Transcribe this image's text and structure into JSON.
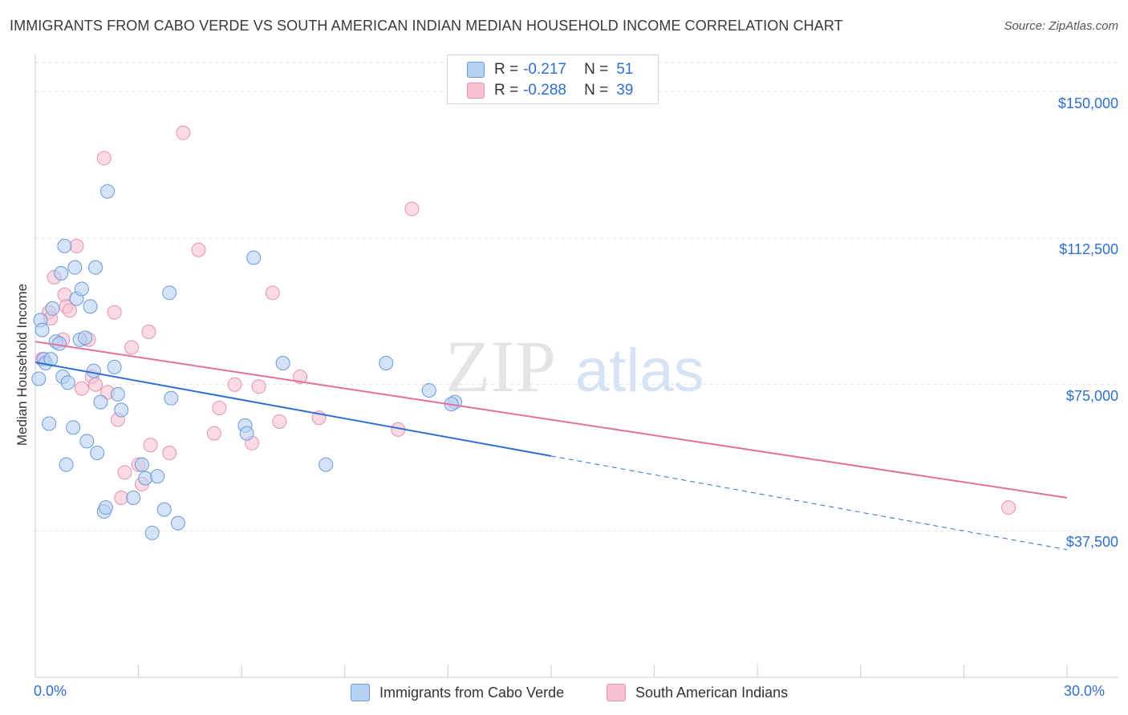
{
  "title": "IMMIGRANTS FROM CABO VERDE VS SOUTH AMERICAN INDIAN MEDIAN HOUSEHOLD INCOME CORRELATION CHART",
  "source": "Source: ZipAtlas.com",
  "watermark": {
    "zip": "ZIP",
    "atlas": "atlas"
  },
  "legend": {
    "rows": [
      {
        "r_label": "R =",
        "r_value": "-0.217",
        "n_label": "N =",
        "n_value": "51"
      },
      {
        "r_label": "R =",
        "r_value": "-0.288",
        "n_label": "N =",
        "n_value": "39"
      }
    ]
  },
  "colors": {
    "blue_fill": "#b8d0f2",
    "blue_stroke": "#6a9ad8",
    "blue_line": "#2f6fd0",
    "pink_fill": "#f7c3d3",
    "pink_stroke": "#e891ad",
    "pink_line": "#e2709a",
    "axis_text": "#2f6fd0"
  },
  "chart_data": {
    "type": "scatter",
    "title": "IMMIGRANTS FROM CABO VERDE VS SOUTH AMERICAN INDIAN MEDIAN HOUSEHOLD INCOME CORRELATION CHART",
    "xlabel": "",
    "ylabel": "Median Household Income",
    "xlim": [
      0,
      30
    ],
    "ylim": [
      0,
      157500
    ],
    "x_tick_labels": [
      "0.0%",
      "30.0%"
    ],
    "y_ticks": [
      37500,
      75000,
      112500,
      150000
    ],
    "y_tick_labels": [
      "$37,500",
      "$75,000",
      "$112,500",
      "$150,000"
    ],
    "grid": "horizontal dashed",
    "legend_position": "top-center and bottom",
    "series": [
      {
        "name": "Immigrants from Cabo Verde",
        "color": "#b8d0f2",
        "points": [
          [
            0.1,
            76500
          ],
          [
            0.15,
            91500
          ],
          [
            0.2,
            89000
          ],
          [
            0.25,
            81500
          ],
          [
            0.3,
            80500
          ],
          [
            0.4,
            65000
          ],
          [
            0.45,
            81500
          ],
          [
            0.5,
            94500
          ],
          [
            0.6,
            86000
          ],
          [
            0.7,
            85500
          ],
          [
            0.75,
            103500
          ],
          [
            0.8,
            77000
          ],
          [
            0.85,
            110500
          ],
          [
            0.9,
            54500
          ],
          [
            0.95,
            75500
          ],
          [
            1.1,
            64000
          ],
          [
            1.15,
            105000
          ],
          [
            1.2,
            97000
          ],
          [
            1.3,
            86500
          ],
          [
            1.35,
            99500
          ],
          [
            1.45,
            87000
          ],
          [
            1.5,
            60500
          ],
          [
            1.6,
            95000
          ],
          [
            1.7,
            78500
          ],
          [
            1.75,
            105000
          ],
          [
            1.8,
            57500
          ],
          [
            1.9,
            70500
          ],
          [
            2.0,
            42500
          ],
          [
            2.05,
            43500
          ],
          [
            2.1,
            124500
          ],
          [
            2.3,
            79500
          ],
          [
            2.4,
            72500
          ],
          [
            2.5,
            68500
          ],
          [
            2.85,
            46000
          ],
          [
            3.1,
            54500
          ],
          [
            3.2,
            51000
          ],
          [
            3.4,
            37000
          ],
          [
            3.55,
            51500
          ],
          [
            3.75,
            43000
          ],
          [
            3.9,
            98500
          ],
          [
            3.95,
            71500
          ],
          [
            4.15,
            39500
          ],
          [
            6.1,
            64500
          ],
          [
            6.15,
            62500
          ],
          [
            6.35,
            107500
          ],
          [
            7.2,
            80500
          ],
          [
            8.45,
            54500
          ],
          [
            10.2,
            80500
          ],
          [
            11.45,
            73500
          ],
          [
            12.2,
            70500
          ],
          [
            12.1,
            70000
          ]
        ]
      },
      {
        "name": "South American Indians",
        "color": "#f7c3d3",
        "points": [
          [
            0.2,
            81500
          ],
          [
            0.4,
            93500
          ],
          [
            0.45,
            92000
          ],
          [
            0.55,
            102500
          ],
          [
            0.8,
            86500
          ],
          [
            0.85,
            98000
          ],
          [
            0.9,
            95000
          ],
          [
            1.0,
            94000
          ],
          [
            1.2,
            110500
          ],
          [
            1.35,
            74000
          ],
          [
            1.55,
            86500
          ],
          [
            1.65,
            77000
          ],
          [
            1.75,
            75000
          ],
          [
            2.0,
            133000
          ],
          [
            2.1,
            73000
          ],
          [
            2.3,
            93500
          ],
          [
            2.4,
            66000
          ],
          [
            2.5,
            46000
          ],
          [
            2.6,
            52500
          ],
          [
            2.8,
            84500
          ],
          [
            3.0,
            54500
          ],
          [
            3.1,
            49500
          ],
          [
            3.3,
            88500
          ],
          [
            3.35,
            59500
          ],
          [
            3.9,
            57500
          ],
          [
            4.3,
            139500
          ],
          [
            4.75,
            109500
          ],
          [
            5.2,
            62500
          ],
          [
            5.35,
            69000
          ],
          [
            5.8,
            75000
          ],
          [
            6.3,
            60000
          ],
          [
            6.5,
            74500
          ],
          [
            6.9,
            98500
          ],
          [
            7.1,
            65500
          ],
          [
            7.7,
            77000
          ],
          [
            8.25,
            66500
          ],
          [
            10.55,
            63500
          ],
          [
            10.95,
            120000
          ],
          [
            28.3,
            43500
          ]
        ]
      }
    ],
    "trend_lines": [
      {
        "series": "Immigrants from Cabo Verde",
        "x_start": 0,
        "y_start": 80700,
        "x_end": 15,
        "y_end": 56700,
        "dashed_to_x": 30,
        "dashed_to_y": 32700
      },
      {
        "series": "South American Indians",
        "x_start": 0,
        "y_start": 86000,
        "x_end": 30,
        "y_end": 46000
      }
    ]
  }
}
